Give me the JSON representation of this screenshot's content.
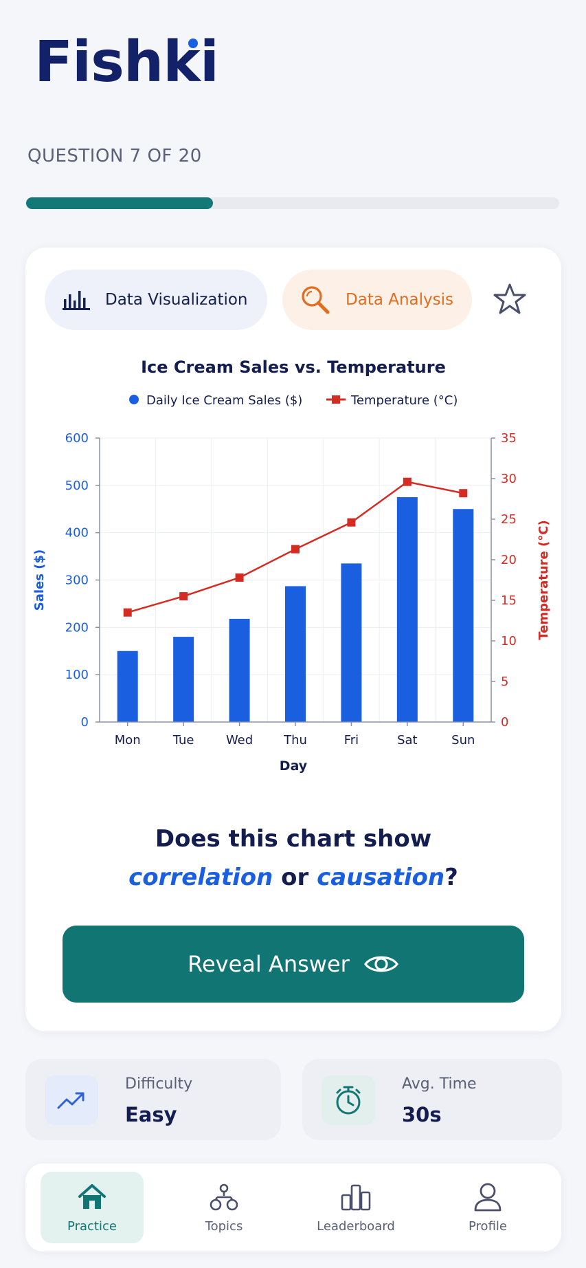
{
  "app": {
    "name": "Fishki"
  },
  "progress": {
    "label": "QUESTION 7 OF 20",
    "current": 7,
    "total": 20,
    "fraction": 0.35
  },
  "tags": {
    "primary": {
      "label": "Data Visualization",
      "icon": "bar-chart-icon"
    },
    "secondary": {
      "label": "Data Analysis",
      "icon": "magnifier-icon"
    },
    "favorite_icon": "star-icon"
  },
  "chart_data": {
    "type": "bar",
    "title": "Ice Cream Sales vs. Temperature",
    "xlabel": "Day",
    "ylabel": "Sales ($)",
    "y2label": "Temperature (°C)",
    "categories": [
      "Mon",
      "Tue",
      "Wed",
      "Thu",
      "Fri",
      "Sat",
      "Sun"
    ],
    "ylim": [
      0,
      600
    ],
    "yticks": [
      0,
      100,
      200,
      300,
      400,
      500,
      600
    ],
    "y2lim": [
      0,
      35
    ],
    "y2ticks": [
      0,
      5,
      10,
      15,
      20,
      25,
      30,
      35
    ],
    "series": [
      {
        "name": "Daily Ice Cream Sales ($)",
        "type": "bar",
        "axis": "left",
        "color": "#1a5fe0",
        "values": [
          150,
          180,
          218,
          287,
          335,
          475,
          450
        ]
      },
      {
        "name": "Temperature (°C)",
        "type": "line",
        "axis": "right",
        "color": "#d42b22",
        "values": [
          13.5,
          15.5,
          17.8,
          21.3,
          24.6,
          29.6,
          28.2
        ]
      }
    ],
    "grid": true,
    "legend": "top"
  },
  "question": {
    "prefix": "Does this chart show",
    "term1": "correlation",
    "connector": "or",
    "term2": "causation",
    "suffix": "?"
  },
  "reveal_button": {
    "label": "Reveal Answer",
    "icon": "eye-icon"
  },
  "stats": {
    "difficulty": {
      "label": "Difficulty",
      "value": "Easy",
      "icon": "trending-up-icon"
    },
    "avg_time": {
      "label": "Avg. Time",
      "value": "30s",
      "icon": "stopwatch-icon"
    }
  },
  "nav": [
    {
      "label": "Practice",
      "icon": "home-icon",
      "active": true
    },
    {
      "label": "Topics",
      "icon": "topics-icon",
      "active": false
    },
    {
      "label": "Leaderboard",
      "icon": "leaderboard-icon",
      "active": false
    },
    {
      "label": "Profile",
      "icon": "profile-icon",
      "active": false
    }
  ],
  "colors": {
    "brand": "#132168",
    "accent": "#117673",
    "bar": "#1a5fe0",
    "line": "#d42b22",
    "analysis": "#e36d1f"
  }
}
